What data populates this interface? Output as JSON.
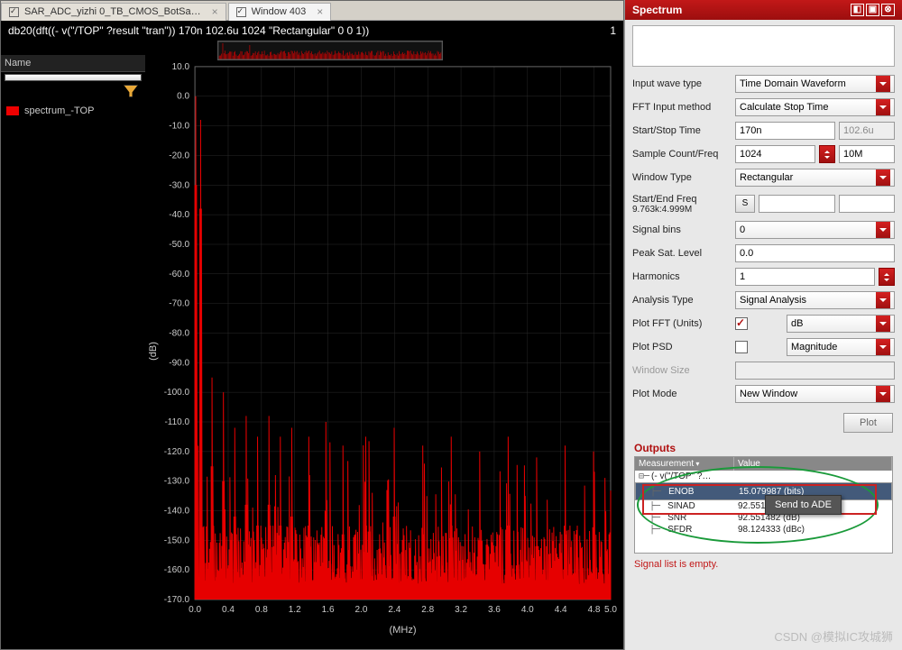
{
  "tabs": {
    "t1": "SAR_ADC_yizhi 0_TB_CMOS_BotSa…",
    "t2": "Window 403"
  },
  "formula": "db20(dft((- v(\"/TOP\" ?result \"tran\"))  170n 102.6u 1024 \"Rectangular\" 0 0 1))",
  "formula_right": "1",
  "legend": {
    "header": "Name",
    "item": "spectrum_-TOP"
  },
  "y": {
    "label": "(dB)",
    "ticks": [
      "10.0",
      "0.0",
      "-10.0",
      "-20.0",
      "-30.0",
      "-40.0",
      "-50.0",
      "-60.0",
      "-70.0",
      "-80.0",
      "-90.0",
      "-100.0",
      "-110.0",
      "-120.0",
      "-130.0",
      "-140.0",
      "-150.0",
      "-160.0",
      "-170.0"
    ],
    "min": -170,
    "max": 10
  },
  "x": {
    "label": "(MHz)",
    "ticks": [
      "0.0",
      "0.4",
      "0.8",
      "1.2",
      "1.6",
      "2.0",
      "2.4",
      "2.8",
      "3.2",
      "3.6",
      "4.0",
      "4.4",
      "4.8"
    ],
    "extra": "5.0",
    "min": 0.0,
    "max": 5.0
  },
  "panel": {
    "title": "Spectrum",
    "input_wave_type": {
      "lbl": "Input wave type",
      "val": "Time Domain Waveform"
    },
    "fft_method": {
      "lbl": "FFT Input method",
      "val": "Calculate Stop Time"
    },
    "startstop": {
      "lbl": "Start/Stop Time",
      "v1": "170n",
      "v2": "102.6u"
    },
    "samplecnt": {
      "lbl": "Sample Count/Freq",
      "v1": "1024",
      "v2": "10M"
    },
    "wintype": {
      "lbl": "Window Type",
      "val": "Rectangular"
    },
    "sefreq": {
      "lbl": "Start/End Freq",
      "sub": "9.763k:4.999M",
      "btn": "S"
    },
    "sigbins": {
      "lbl": "Signal bins",
      "val": "0"
    },
    "peak": {
      "lbl": "Peak Sat. Level",
      "val": "0.0"
    },
    "harm": {
      "lbl": "Harmonics",
      "val": "1"
    },
    "atype": {
      "lbl": "Analysis Type",
      "val": "Signal Analysis"
    },
    "plotfft": {
      "lbl": "Plot FFT (Units)",
      "val": "dB"
    },
    "plotpsd": {
      "lbl": "Plot PSD",
      "val": "Magnitude"
    },
    "winsize": {
      "lbl": "Window Size"
    },
    "plotmode": {
      "lbl": "Plot Mode",
      "val": "New Window"
    },
    "plot_btn": "Plot"
  },
  "outputs": {
    "title": "Outputs",
    "cols": {
      "c1": "Measurement",
      "c2": "Value"
    },
    "root": "(- v(\"/TOP\" ?…",
    "rows": [
      {
        "m": "ENOB",
        "v": "15.079987 (bits)",
        "sel": true
      },
      {
        "m": "SINAD",
        "v": "92.55148"
      },
      {
        "m": "SNR",
        "v": "92.551482 (dB)"
      },
      {
        "m": "SFDR",
        "v": "98.124333 (dBc)"
      }
    ],
    "ctx": "Send to ADE"
  },
  "siglist": "Signal list is empty.",
  "watermark": "CSDN @模拟IC攻城狮"
}
